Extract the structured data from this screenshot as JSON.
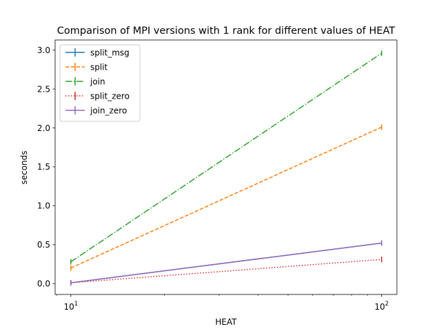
{
  "chart_data": {
    "type": "line",
    "title": "Comparison of MPI versions with 1 rank for different values of HEAT",
    "xlabel": "HEAT",
    "ylabel": "seconds",
    "x_scale": "log",
    "x": [
      10,
      100
    ],
    "x_ticks": [
      {
        "value": 10,
        "base": "10",
        "exp": "1"
      },
      {
        "value": 100,
        "base": "10",
        "exp": "2"
      }
    ],
    "xlim": [
      8.9,
      112
    ],
    "ylim": [
      -0.14,
      3.13
    ],
    "y_ticks": [
      0.0,
      0.5,
      1.0,
      1.5,
      2.0,
      2.5,
      3.0
    ],
    "y_tick_labels": [
      "0.0",
      "0.5",
      "1.0",
      "1.5",
      "2.0",
      "2.5",
      "3.0"
    ],
    "grid": false,
    "legend_position": "top-left",
    "series": [
      {
        "name": "split_msg",
        "values": [
          0.01,
          0.52
        ],
        "color": "#1f77b4",
        "dash": "solid"
      },
      {
        "name": "split",
        "values": [
          0.2,
          2.01
        ],
        "color": "#ff7f0e",
        "dash": "dashed"
      },
      {
        "name": "join",
        "values": [
          0.28,
          2.96
        ],
        "color": "#2ca02c",
        "dash": "dashdot"
      },
      {
        "name": "split_zero",
        "values": [
          0.01,
          0.31
        ],
        "color": "#d62728",
        "dash": "dotted"
      },
      {
        "name": "join_zero",
        "values": [
          0.01,
          0.52
        ],
        "color": "#9467bd",
        "dash": "solid"
      }
    ]
  }
}
